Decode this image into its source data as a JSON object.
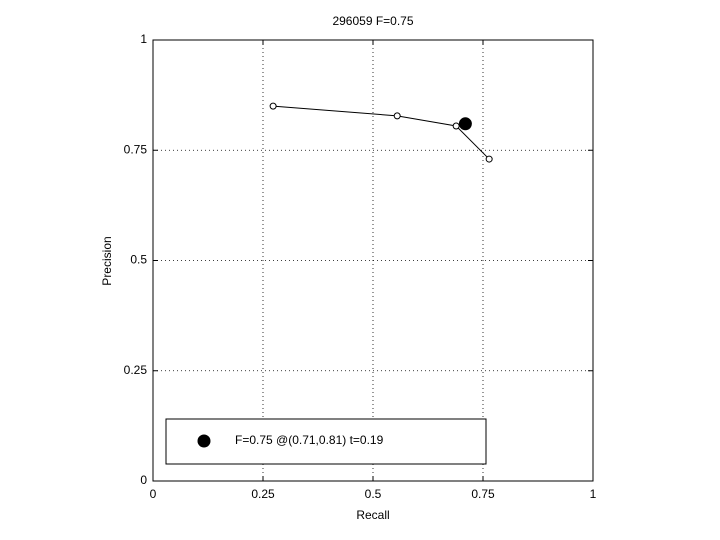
{
  "chart_data": {
    "type": "line",
    "title": "296059 F=0.75",
    "x_label": "Recall",
    "y_label": "Precision",
    "xlim": [
      0,
      1
    ],
    "ylim": [
      0,
      1
    ],
    "xticks": [
      0,
      0.25,
      0.5,
      0.75,
      1
    ],
    "yticks": [
      0,
      0.25,
      0.5,
      0.75,
      1
    ],
    "grid": true,
    "legend": "lower left",
    "series": [
      {
        "x": [
          0.273,
          0.555,
          0.689,
          0.764
        ],
        "y": [
          0.85,
          0.828,
          0.805,
          0.73
        ],
        "color": "#000000",
        "marker": "open"
      },
      {
        "name": "F=0.75 @(0.71,0.81) t=0.19",
        "x": [
          0.71
        ],
        "y": [
          0.81
        ],
        "color": "#000000",
        "marker": "filled"
      }
    ]
  }
}
